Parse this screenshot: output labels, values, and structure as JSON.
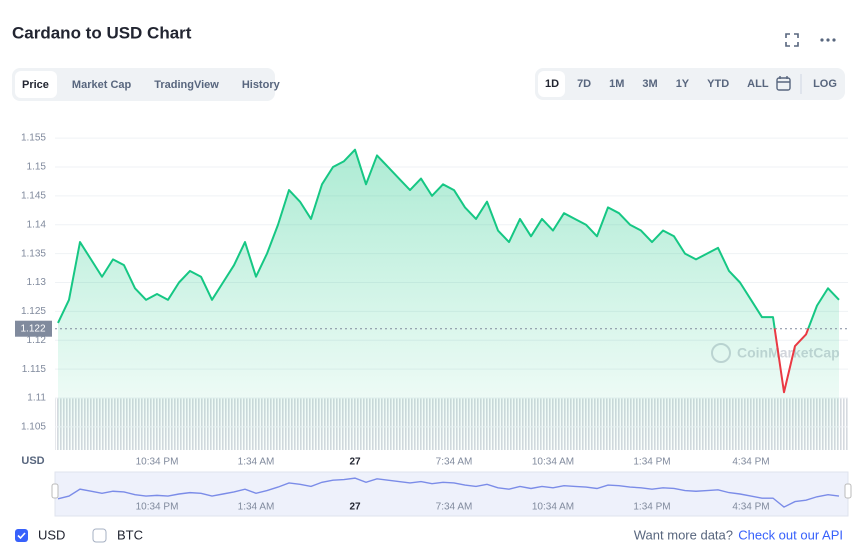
{
  "header": {
    "title": "Cardano to USD Chart"
  },
  "tabs": [
    "Price",
    "Market Cap",
    "TradingView",
    "History"
  ],
  "ranges": [
    "1D",
    "7D",
    "1M",
    "3M",
    "1Y",
    "YTD",
    "ALL"
  ],
  "log_button": "LOG",
  "chart_data": {
    "type": "line",
    "y_label": "USD",
    "watermark": "CoinMarketCap",
    "categories": [
      null,
      null,
      null,
      null,
      null,
      null,
      null,
      null,
      null,
      "10:34 PM",
      null,
      null,
      null,
      null,
      null,
      null,
      null,
      null,
      "1:34 AM",
      null,
      null,
      null,
      null,
      null,
      null,
      null,
      null,
      "27",
      null,
      null,
      null,
      null,
      null,
      null,
      null,
      null,
      "7:34 AM",
      null,
      null,
      null,
      null,
      null,
      null,
      null,
      null,
      "10:34 AM",
      null,
      null,
      null,
      null,
      null,
      null,
      null,
      null,
      "1:34 PM",
      null,
      null,
      null,
      null,
      null,
      null,
      null,
      null,
      "4:34 PM",
      null,
      null,
      null,
      null,
      null,
      null,
      null,
      null
    ],
    "values": [
      1.123,
      1.127,
      1.137,
      1.134,
      1.131,
      1.134,
      1.133,
      1.129,
      1.127,
      1.128,
      1.127,
      1.13,
      1.132,
      1.131,
      1.127,
      1.13,
      1.133,
      1.137,
      1.131,
      1.135,
      1.14,
      1.146,
      1.144,
      1.141,
      1.147,
      1.15,
      1.151,
      1.153,
      1.147,
      1.152,
      1.15,
      1.148,
      1.146,
      1.148,
      1.145,
      1.147,
      1.146,
      1.143,
      1.141,
      1.144,
      1.139,
      1.137,
      1.141,
      1.138,
      1.141,
      1.139,
      1.142,
      1.141,
      1.14,
      1.138,
      1.143,
      1.142,
      1.14,
      1.139,
      1.137,
      1.139,
      1.138,
      1.135,
      1.134,
      1.135,
      1.136,
      1.132,
      1.13,
      1.127,
      1.124,
      1.124,
      1.111,
      1.119,
      1.121,
      1.126,
      1.129,
      1.127
    ],
    "color": "#16c784",
    "down_color": "#ea3943",
    "reference_price": 1.122,
    "ylim": [
      1.101,
      1.159
    ],
    "yticks": [
      1.105,
      1.11,
      1.115,
      1.12,
      1.125,
      1.13,
      1.135,
      1.14,
      1.145,
      1.15,
      1.155
    ],
    "grid": true
  },
  "legend": [
    "USD",
    "BTC"
  ],
  "footer": {
    "text": "Want more data?",
    "link": "Check out our API"
  }
}
